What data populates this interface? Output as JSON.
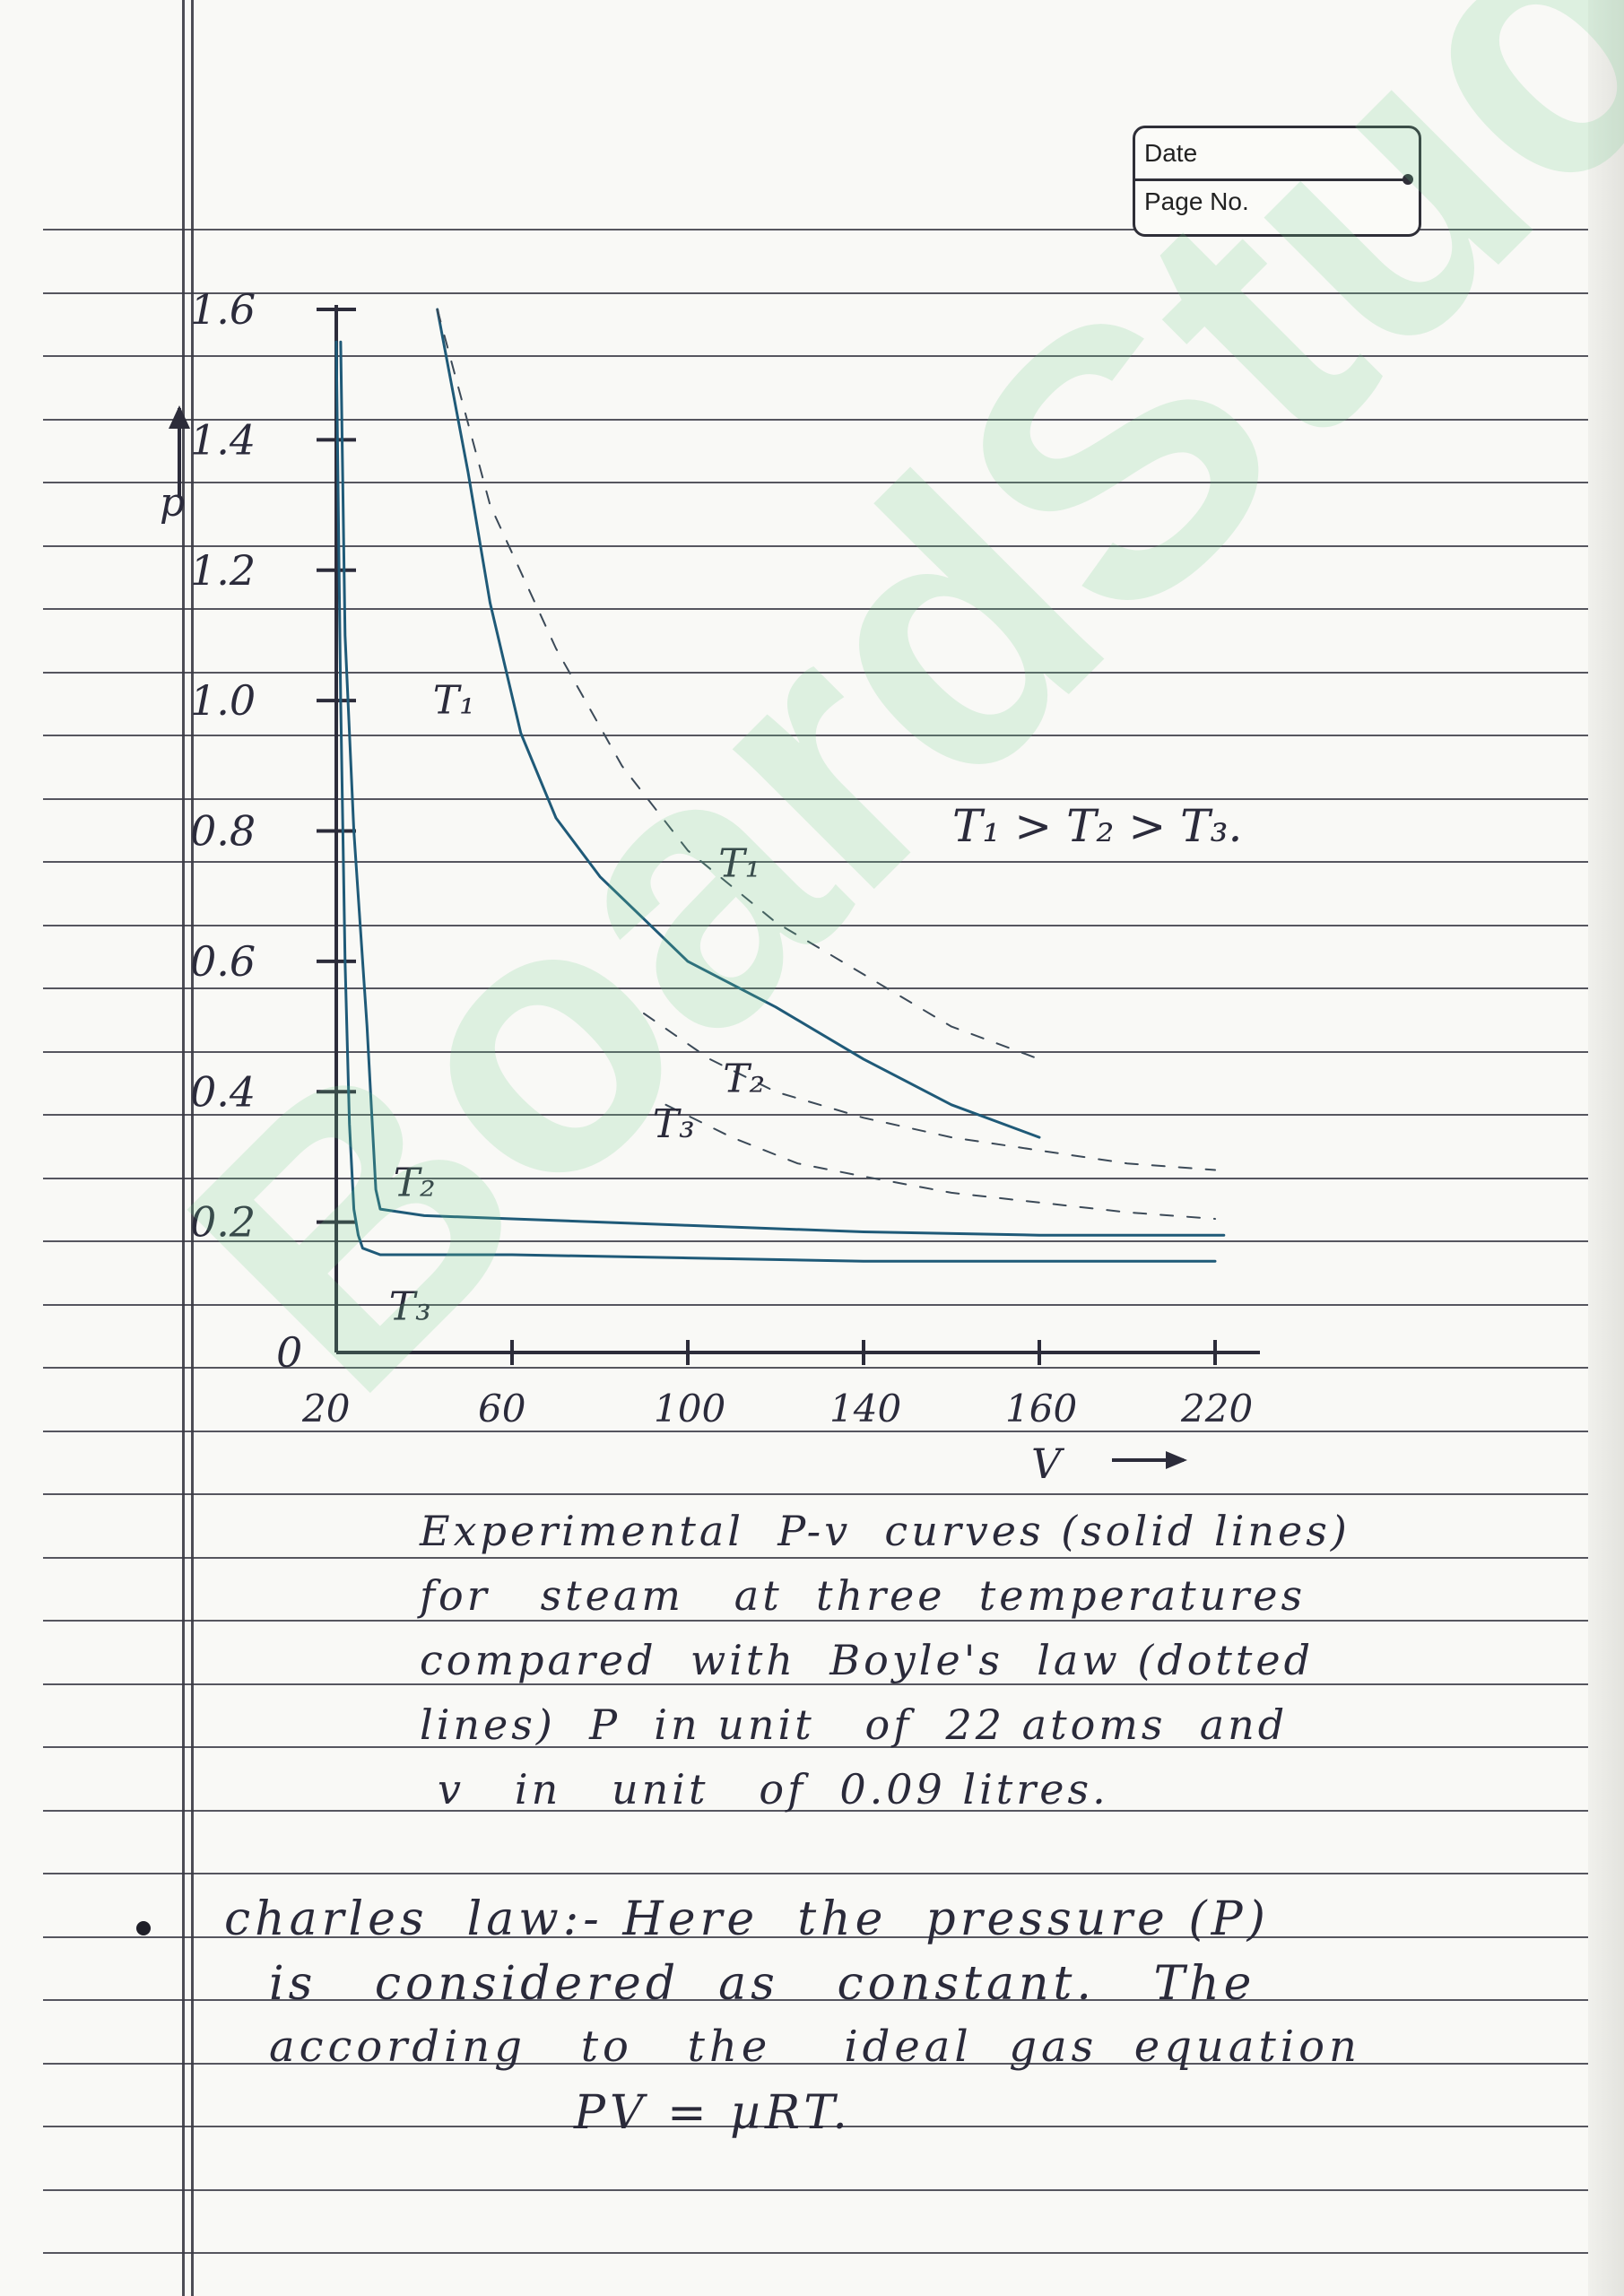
{
  "header": {
    "date_label": "Date",
    "page_label": "Page No."
  },
  "chart_data": {
    "type": "line",
    "ylabel": "p",
    "xlabel": "V",
    "y_ticks": [
      "1.6",
      "1.4",
      "1.2",
      "1.0",
      "0.8",
      "0.6",
      "0.4",
      "0.2",
      "0"
    ],
    "x_ticks": [
      "20",
      "60",
      "100",
      "140",
      "160",
      "220"
    ],
    "annotation": "T₁ > T₂ > T₃.",
    "series": [
      {
        "name": "T₁",
        "style": "solid",
        "x": [
          43,
          50,
          55,
          62,
          70,
          80,
          100,
          120,
          140,
          160,
          180
        ],
        "y": [
          1.6,
          1.35,
          1.15,
          0.95,
          0.82,
          0.73,
          0.6,
          0.53,
          0.45,
          0.38,
          0.33
        ]
      },
      {
        "name": "T₂",
        "style": "solid",
        "x": [
          21,
          22,
          24,
          27,
          29,
          30,
          40,
          60,
          100,
          140,
          180,
          222
        ],
        "y": [
          1.55,
          1.1,
          0.8,
          0.5,
          0.25,
          0.22,
          0.21,
          0.205,
          0.195,
          0.185,
          0.18,
          0.18
        ]
      },
      {
        "name": "T₃",
        "style": "solid",
        "x": [
          20,
          21,
          22,
          23,
          24,
          25,
          26,
          30,
          40,
          60,
          100,
          140,
          180,
          220
        ],
        "y": [
          1.55,
          1.0,
          0.6,
          0.35,
          0.22,
          0.18,
          0.16,
          0.15,
          0.15,
          0.15,
          0.145,
          0.14,
          0.14,
          0.14
        ]
      },
      {
        "name": "T₁",
        "style": "dotted",
        "x": [
          43,
          55,
          70,
          85,
          100,
          120,
          140,
          160,
          180
        ],
        "y": [
          1.6,
          1.3,
          1.08,
          0.9,
          0.77,
          0.66,
          0.58,
          0.5,
          0.45
        ]
      },
      {
        "name": "T₂",
        "style": "dotted",
        "x": [
          90,
          105,
          120,
          140,
          160,
          180,
          200,
          220
        ],
        "y": [
          0.52,
          0.45,
          0.4,
          0.36,
          0.33,
          0.31,
          0.29,
          0.28
        ]
      },
      {
        "name": "T₃",
        "style": "dotted",
        "x": [
          95,
          110,
          125,
          140,
          160,
          180,
          200,
          220
        ],
        "y": [
          0.38,
          0.33,
          0.29,
          0.27,
          0.245,
          0.23,
          0.215,
          0.205
        ]
      }
    ],
    "curve_labels": [
      {
        "text": "T₁",
        "x": 42,
        "y": 0.98
      },
      {
        "text": "T₁",
        "x": 107,
        "y": 0.73
      },
      {
        "text": "T₂",
        "x": 108,
        "y": 0.4
      },
      {
        "text": "T₃",
        "x": 92,
        "y": 0.33
      },
      {
        "text": "T₂",
        "x": 33,
        "y": 0.24
      },
      {
        "text": "T₃",
        "x": 32,
        "y": 0.05
      }
    ]
  },
  "caption": {
    "lines": [
      "Experimental  P-v  curves (solid lines)",
      "for   steam   at  three  temperatures",
      "compared  with  Boyle's  law (dotted",
      "lines)  P  in unit   of  22 atoms  and",
      "v   in   unit   of  0.09 litres."
    ]
  },
  "notes": {
    "lines": [
      "charles  law:- Here  the  pressure (P)",
      "is   considered  as   constant.   The",
      "according   to   the    ideal  gas  equation",
      "PV = µRT."
    ]
  },
  "watermark": "BoardStudy"
}
